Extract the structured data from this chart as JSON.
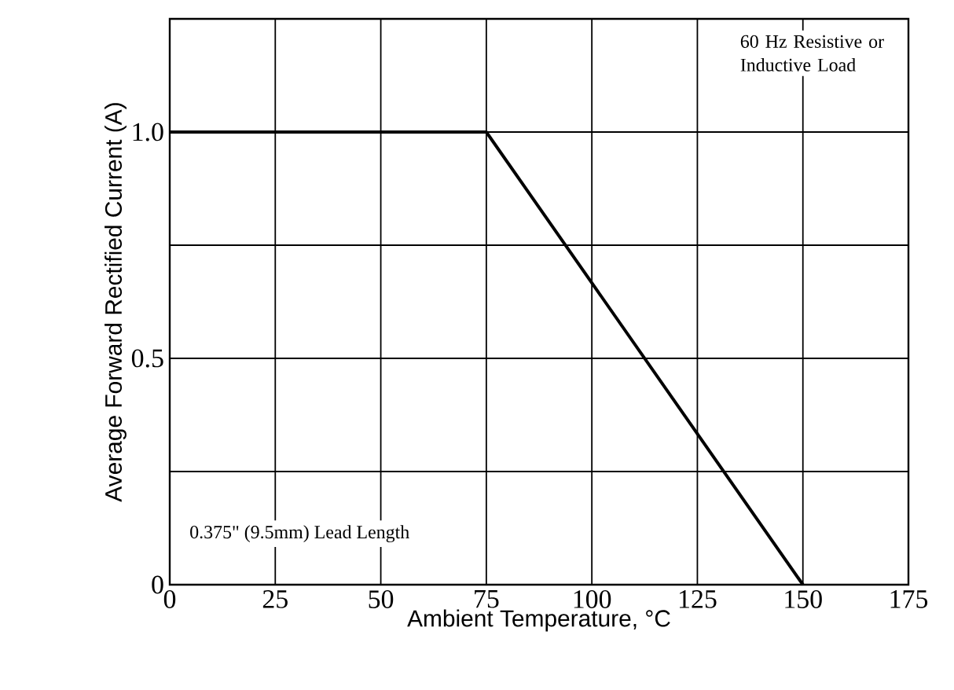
{
  "chart_data": {
    "type": "line",
    "x": [
      0,
      75,
      150
    ],
    "values": [
      1.0,
      1.0,
      0
    ],
    "color": "#000000",
    "xlim": [
      0,
      175
    ],
    "xticks": [
      0,
      25,
      50,
      75,
      100,
      125,
      150,
      175
    ],
    "ylim": [
      0,
      1.25
    ],
    "yticks": [
      0,
      {
        "value": 0.25,
        "label": null
      },
      0.5,
      {
        "value": 0.75,
        "label": null
      },
      {
        "value": 1.0,
        "label": "1.0"
      }
    ],
    "xlabel": "Ambient Temperature, °C",
    "ylabel": "Average Forward Rectified Current (A)",
    "annotations": [
      "60 Hz Resistive or Inductive Load",
      "0.375\" (9.5mm) Lead Length"
    ],
    "grid": true,
    "marker": "none",
    "line_style": "solid"
  }
}
